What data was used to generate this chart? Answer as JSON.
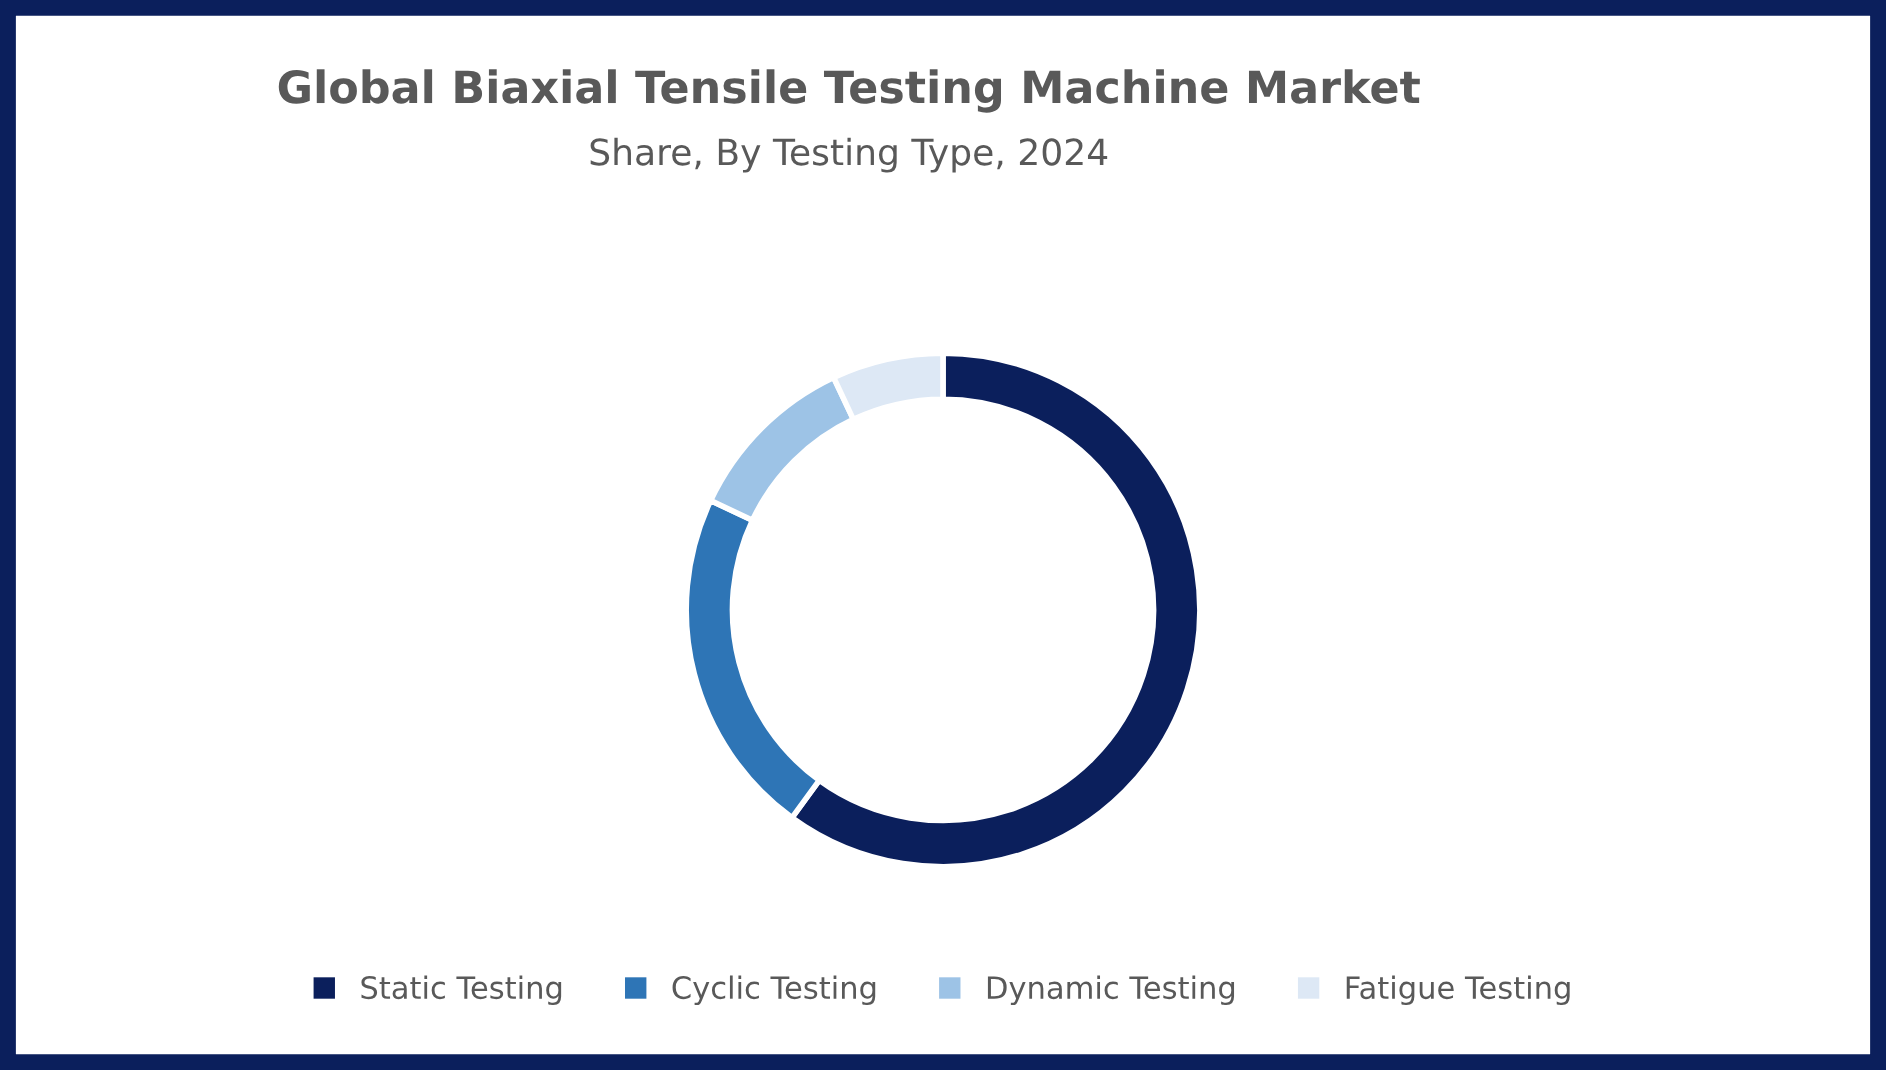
{
  "chart_data": {
    "type": "donut",
    "title": "Global Biaxial Tensile Testing Machine Market",
    "subtitle": "Share, By Testing Type, 2024",
    "categories": [
      "Static Testing",
      "Cyclic Testing",
      "Dynamic Testing",
      "Fatigue Testing"
    ],
    "values": [
      60,
      22,
      11,
      7
    ],
    "colors": [
      "#0b1f5c",
      "#2e75b6",
      "#9dc3e6",
      "#dde8f5"
    ],
    "legend": "bottom"
  }
}
